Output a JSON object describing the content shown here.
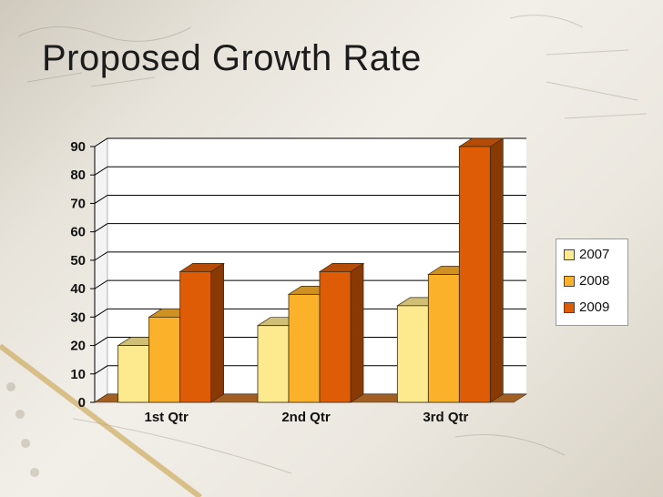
{
  "slide": {
    "title": "Proposed Growth Rate"
  },
  "colors": {
    "2007": "#fdea8f",
    "2008": "#fbb12a",
    "2009": "#dd5c05",
    "gridline": "#000000",
    "floor": "#a35e22"
  },
  "chart_data": {
    "type": "bar",
    "style": "3d-clustered-column",
    "categories": [
      "1st Qtr",
      "2nd Qtr",
      "3rd Qtr"
    ],
    "series": [
      {
        "name": "2007",
        "values": [
          20,
          27,
          34
        ]
      },
      {
        "name": "2008",
        "values": [
          30,
          38,
          45
        ]
      },
      {
        "name": "2009",
        "values": [
          46,
          46,
          90
        ]
      }
    ],
    "ylim": [
      0,
      90
    ],
    "yticks": [
      "0",
      "10",
      "20",
      "30",
      "40",
      "50",
      "60",
      "70",
      "80",
      "90"
    ],
    "grid": true,
    "legend": "right"
  }
}
